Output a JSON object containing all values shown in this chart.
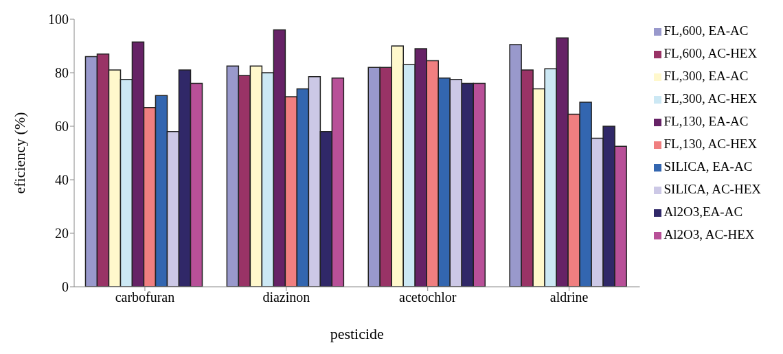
{
  "chart_data": {
    "type": "bar",
    "xlabel": "pesticide",
    "ylabel": "eficiency (%)",
    "categories": [
      "carbofuran",
      "diazinon",
      "acetochlor",
      "aldrine"
    ],
    "series": [
      {
        "name": "FL,600, EA-AC",
        "color": "#9999cc",
        "values": [
          86,
          82.5,
          82,
          90.5
        ]
      },
      {
        "name": "FL,600, AC-HEX",
        "color": "#993366",
        "values": [
          87,
          79,
          82,
          81
        ]
      },
      {
        "name": "FL,300, EA-AC",
        "color": "#fff8cc",
        "values": [
          81,
          82.5,
          90,
          74
        ]
      },
      {
        "name": "FL,300, AC-HEX",
        "color": "#cce8f4",
        "values": [
          77.5,
          80,
          83,
          81.5
        ]
      },
      {
        "name": "FL,130, EA-AC",
        "color": "#662266",
        "values": [
          91.5,
          96,
          89,
          93
        ]
      },
      {
        "name": "FL,130, AC-HEX",
        "color": "#f07f80",
        "values": [
          67,
          71,
          84.5,
          64.5
        ]
      },
      {
        "name": "SILICA, EA-AC",
        "color": "#3366b0",
        "values": [
          71.5,
          74,
          78,
          69
        ]
      },
      {
        "name": "SILICA, AC-HEX",
        "color": "#ccc8e6",
        "values": [
          58,
          78.5,
          77.5,
          55.5
        ]
      },
      {
        "name": "Al2O3,EA-AC",
        "color": "#302868",
        "values": [
          81,
          58,
          76,
          60
        ]
      },
      {
        "name": "Al2O3, AC-HEX",
        "color": "#b85098",
        "values": [
          76,
          78,
          76,
          52.5
        ]
      }
    ],
    "ylim": [
      0,
      100
    ],
    "yticks": [
      0,
      20,
      40,
      60,
      80,
      100
    ],
    "grid": false,
    "legend": "right"
  }
}
